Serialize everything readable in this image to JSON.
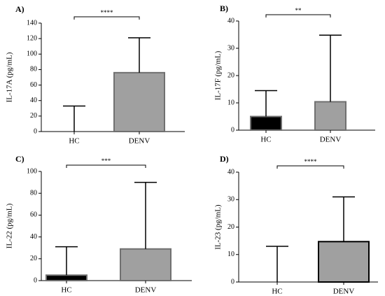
{
  "chart_data": [
    {
      "panel": "A)",
      "type": "bar",
      "ylabel": "IL-17A (pg/mL)",
      "categories": [
        "HC",
        "DENV"
      ],
      "values": [
        0,
        76
      ],
      "error_upper": [
        33,
        121
      ],
      "bar_colors": [
        "#000000",
        "#a0a0a0"
      ],
      "bar_border_colors": [
        "#000000",
        "#707070"
      ],
      "ylim": [
        0,
        140
      ],
      "yticks": [
        0,
        20,
        40,
        60,
        80,
        100,
        120,
        140
      ],
      "significance": "****"
    },
    {
      "panel": "B)",
      "type": "bar",
      "ylabel": "IL-17F (pg/mL)",
      "categories": [
        "HC",
        "DENV"
      ],
      "values": [
        5,
        10.4
      ],
      "error_upper": [
        14.5,
        34.8
      ],
      "bar_colors": [
        "#000000",
        "#a0a0a0"
      ],
      "bar_border_colors": [
        "#707070",
        "#707070"
      ],
      "ylim": [
        0,
        40
      ],
      "yticks": [
        0,
        10,
        20,
        30,
        40
      ],
      "significance": "**"
    },
    {
      "panel": "C)",
      "type": "bar",
      "ylabel": "IL-22 (pg/mL)",
      "categories": [
        "HC",
        "DENV"
      ],
      "values": [
        5,
        29
      ],
      "error_upper": [
        31,
        90
      ],
      "bar_colors": [
        "#000000",
        "#a0a0a0"
      ],
      "bar_border_colors": [
        "#707070",
        "#707070"
      ],
      "ylim": [
        0,
        100
      ],
      "yticks": [
        0,
        20,
        40,
        60,
        80,
        100
      ],
      "significance": "***"
    },
    {
      "panel": "D)",
      "type": "bar",
      "ylabel": "IL-23 (pg/mL)",
      "categories": [
        "HC",
        "DENV"
      ],
      "values": [
        0,
        14.7
      ],
      "error_upper": [
        13,
        31
      ],
      "bar_colors": [
        "#000000",
        "#a0a0a0"
      ],
      "bar_border_colors": [
        "#000000",
        "#000000"
      ],
      "ylim": [
        0,
        40
      ],
      "yticks": [
        0,
        10,
        20,
        30,
        40
      ],
      "significance": "****"
    }
  ]
}
